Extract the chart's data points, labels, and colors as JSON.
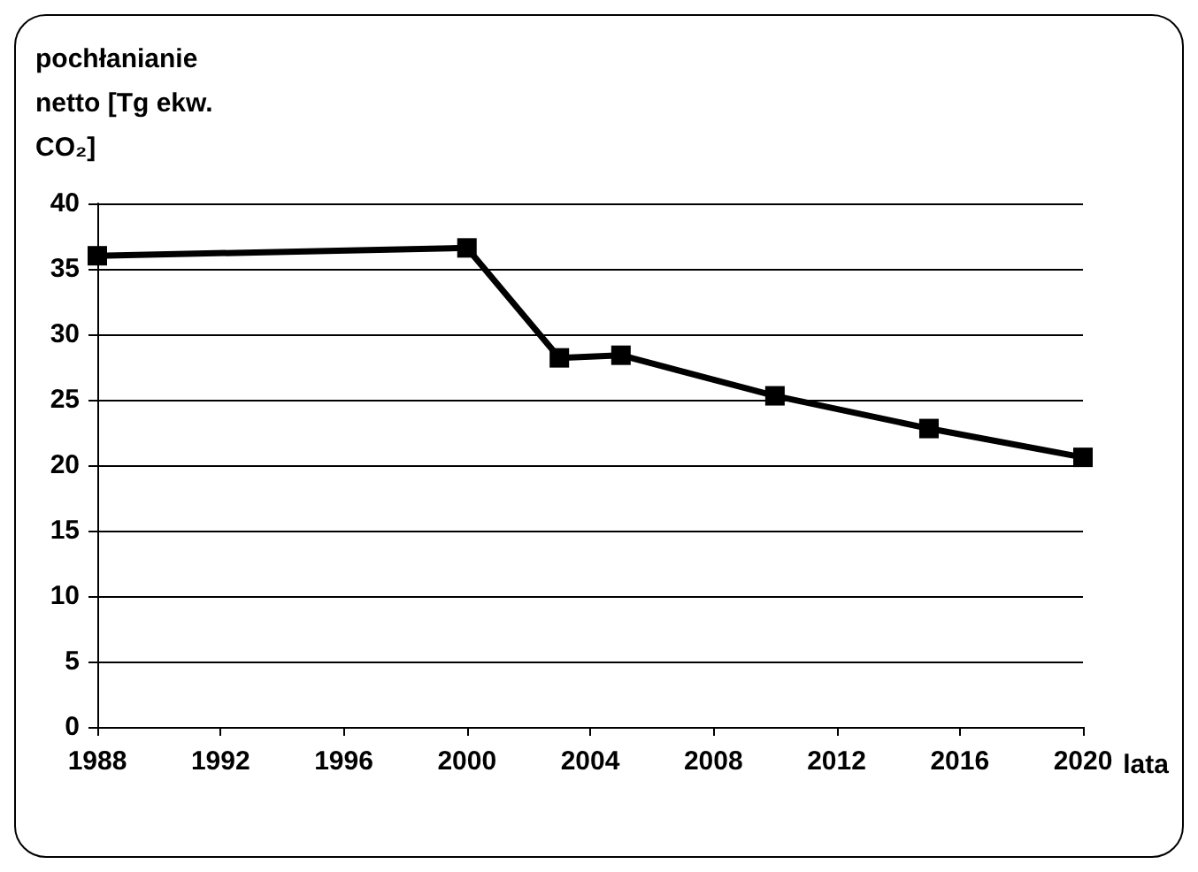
{
  "chart_data": {
    "type": "line",
    "ylabel": "pochłanianie netto [Tg ekw. CO₂]",
    "xlabel": "lata",
    "x": [
      1988,
      2000,
      2003,
      2005,
      2010,
      2015,
      2020
    ],
    "series": [
      {
        "color": "#000000",
        "values": [
          36.0,
          36.6,
          28.2,
          28.4,
          25.3,
          22.8,
          20.6
        ]
      }
    ],
    "xlim": [
      1988,
      2020
    ],
    "xticks": [
      1988,
      1992,
      1996,
      2000,
      2004,
      2008,
      2012,
      2016,
      2020
    ],
    "ylim": [
      0,
      40
    ],
    "yticks": [
      0,
      5,
      10,
      15,
      20,
      25,
      30,
      35,
      40
    ],
    "grid": "y",
    "marker": "square",
    "line_style": "solid"
  }
}
